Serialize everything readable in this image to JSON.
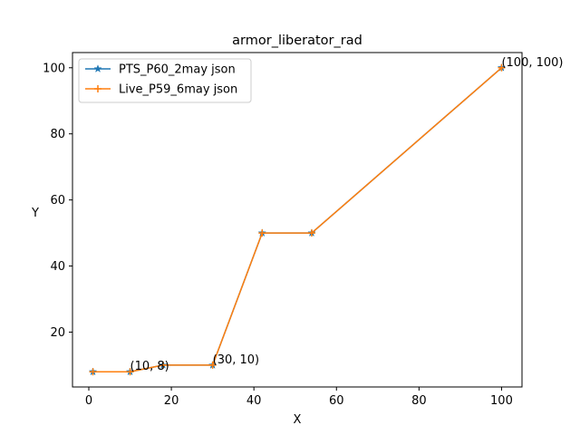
{
  "chart_data": {
    "type": "line",
    "title": "armor_liberator_rad",
    "xlabel": "X",
    "ylabel": "Y",
    "xlim": [
      -3.95,
      104.95
    ],
    "ylim": [
      3.4,
      104.6
    ],
    "xticks": [
      0,
      20,
      40,
      60,
      80,
      100
    ],
    "yticks": [
      20,
      40,
      60,
      80,
      100
    ],
    "grid": false,
    "legend_position": "upper-left",
    "series": [
      {
        "name": "PTS_P60_2may json",
        "color": "#1f77b4",
        "marker": "star",
        "x": [
          1,
          10,
          18,
          30,
          42,
          54,
          100
        ],
        "y": [
          8,
          8,
          10,
          10,
          50,
          50,
          100
        ]
      },
      {
        "name": "Live_P59_6may json",
        "color": "#ff7f0e",
        "marker": "plus",
        "x": [
          1,
          10,
          18,
          30,
          42,
          54,
          100
        ],
        "y": [
          8,
          8,
          10,
          10,
          50,
          50,
          100
        ]
      }
    ],
    "annotations": [
      {
        "text": "(10, 8)",
        "x": 10,
        "y": 8
      },
      {
        "text": "(30, 10)",
        "x": 30,
        "y": 10
      },
      {
        "text": "(100, 100)",
        "x": 100,
        "y": 100
      }
    ]
  }
}
